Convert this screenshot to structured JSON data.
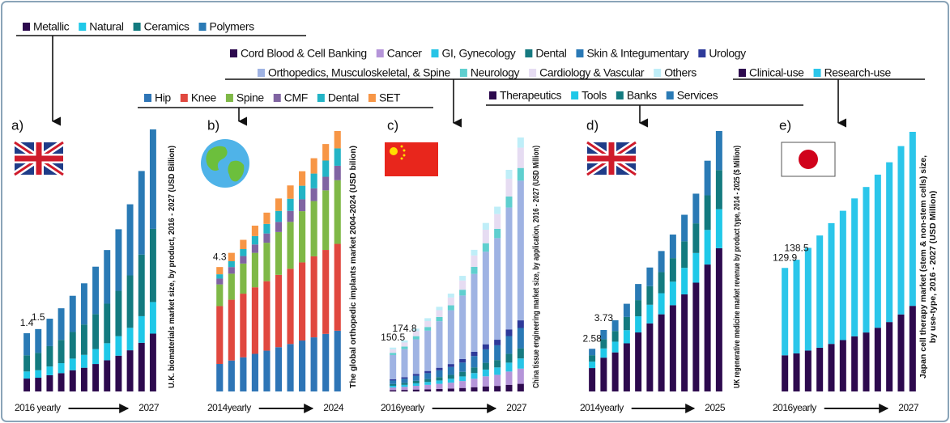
{
  "chart_data": [
    {
      "type": "bar",
      "stacked": true,
      "panel": "a)",
      "y_label": [
        "U.K. biomaterials market size, by product, 2016 - 2027 (USD Billion)"
      ],
      "categories": [
        "2016 yearly",
        null,
        null,
        null,
        null,
        null,
        null,
        null,
        null,
        null,
        null,
        "2027"
      ],
      "annotations": [
        "1.4",
        "1.5"
      ],
      "series": [
        {
          "name": "Metallic",
          "color": "#2d0a4e",
          "values": [
            0.31,
            0.33,
            0.39,
            0.44,
            0.51,
            0.57,
            0.66,
            0.75,
            0.86,
            0.99,
            1.17,
            1.39
          ]
        },
        {
          "name": "Natural",
          "color": "#1fc8e8",
          "values": [
            0.17,
            0.18,
            0.21,
            0.24,
            0.28,
            0.31,
            0.36,
            0.41,
            0.47,
            0.54,
            0.64,
            0.76
          ]
        },
        {
          "name": "Ceramics",
          "color": "#137a7f",
          "values": [
            0.39,
            0.42,
            0.49,
            0.56,
            0.64,
            0.73,
            0.84,
            0.95,
            1.09,
            1.26,
            1.48,
            1.76
          ]
        },
        {
          "name": "Polymers",
          "color": "#2a7ab5",
          "values": [
            0.53,
            0.57,
            0.66,
            0.76,
            0.87,
            0.99,
            1.14,
            1.29,
            1.48,
            1.71,
            2.01,
            2.39
          ]
        }
      ]
    },
    {
      "type": "bar",
      "stacked": true,
      "panel": "b)",
      "y_label": [
        "The global orthopedic implants market 2004-2024 (USD bilion)"
      ],
      "categories": [
        "2014yearly",
        null,
        null,
        null,
        null,
        null,
        null,
        null,
        null,
        null,
        "2024"
      ],
      "annotations": [
        "4.3"
      ],
      "series": [
        {
          "name": "Hip",
          "color": "#2e75b6",
          "values": [
            0.95,
            1.07,
            1.18,
            1.3,
            1.41,
            1.53,
            1.64,
            1.76,
            1.87,
            1.99,
            2.1
          ]
        },
        {
          "name": "Knee",
          "color": "#e0483f",
          "values": [
            2.0,
            2.1,
            2.2,
            2.3,
            2.4,
            2.5,
            2.6,
            2.7,
            2.8,
            2.9,
            3.0
          ]
        },
        {
          "name": "Spine",
          "color": "#7fb847",
          "values": [
            0.75,
            0.9,
            1.04,
            1.19,
            1.33,
            1.48,
            1.62,
            1.77,
            1.91,
            2.06,
            2.2
          ]
        },
        {
          "name": "CMF",
          "color": "#8064a2",
          "values": [
            0.2,
            0.23,
            0.26,
            0.29,
            0.32,
            0.35,
            0.38,
            0.41,
            0.44,
            0.47,
            0.5
          ]
        },
        {
          "name": "Dental",
          "color": "#23b4c6",
          "values": [
            0.15,
            0.2,
            0.24,
            0.29,
            0.33,
            0.38,
            0.42,
            0.47,
            0.51,
            0.56,
            0.6
          ]
        },
        {
          "name": "SET",
          "color": "#f79646",
          "values": [
            0.25,
            0.29,
            0.32,
            0.36,
            0.39,
            0.43,
            0.46,
            0.5,
            0.53,
            0.57,
            0.6
          ]
        }
      ]
    },
    {
      "type": "bar",
      "stacked": true,
      "panel": "c)",
      "y_label": [
        "China tissue engineering market size, by application, 2016 - 2027 (USD Million)"
      ],
      "categories": [
        "2016yearly",
        null,
        null,
        null,
        null,
        null,
        null,
        null,
        null,
        null,
        null,
        "2027"
      ],
      "annotations": [
        "150.5",
        "174.8"
      ],
      "series": [
        {
          "name": "Cord Blood & Cell Banking",
          "color": "#2d0a4e",
          "values": [
            4.5,
            5.2,
            6.5,
            7.5,
            8.7,
            10.1,
            11.9,
            14.6,
            17.3,
            19.0,
            22.8,
            26.1
          ]
        },
        {
          "name": "Cancer",
          "color": "#b595d9",
          "values": [
            9.0,
            10.5,
            12.9,
            15.1,
            17.4,
            20.1,
            23.8,
            29.1,
            34.6,
            38.0,
            45.5,
            52.2
          ]
        },
        {
          "name": "GI, Gynecology",
          "color": "#27c4e6",
          "values": [
            6.0,
            7.0,
            8.6,
            10.0,
            11.6,
            13.4,
            15.8,
            19.4,
            23.1,
            25.3,
            30.4,
            34.8
          ]
        },
        {
          "name": "Dental",
          "color": "#167a80",
          "values": [
            6.0,
            7.0,
            8.6,
            10.0,
            11.6,
            13.4,
            15.8,
            19.4,
            23.1,
            25.3,
            30.4,
            34.8
          ]
        },
        {
          "name": "Skin & Integumentary",
          "color": "#2a79b6",
          "values": [
            12.0,
            14.0,
            17.2,
            20.1,
            23.2,
            26.8,
            31.7,
            38.8,
            46.2,
            50.6,
            60.7,
            69.6
          ]
        },
        {
          "name": "Urology",
          "color": "#2e3a9a",
          "values": [
            4.5,
            5.2,
            6.5,
            7.5,
            8.7,
            10.1,
            11.9,
            14.6,
            17.3,
            19.0,
            22.8,
            26.1
          ]
        },
        {
          "name": "Orthopedics, Musculoskeletal, & Spine",
          "color": "#9fb3e3",
          "values": [
            82.8,
            96.1,
            118.3,
            138.1,
            159.5,
            184.3,
            217.8,
            266.8,
            317.4,
            348.2,
            417.5,
            478.5
          ]
        },
        {
          "name": "Neurology",
          "color": "#5fcfcf",
          "values": [
            7.5,
            8.7,
            10.8,
            12.6,
            14.5,
            16.8,
            19.8,
            24.3,
            28.9,
            31.7,
            38.0,
            43.5
          ]
        },
        {
          "name": "Cardiology & Vascular",
          "color": "#e6dcf2",
          "values": [
            12.0,
            14.0,
            17.2,
            20.1,
            23.2,
            26.8,
            31.7,
            38.8,
            46.2,
            50.6,
            60.7,
            69.6
          ]
        },
        {
          "name": "Others",
          "color": "#bfeef8",
          "values": [
            6.0,
            7.0,
            8.6,
            10.0,
            11.6,
            13.4,
            15.8,
            19.4,
            23.1,
            25.3,
            30.4,
            34.8
          ]
        }
      ]
    },
    {
      "type": "bar",
      "stacked": true,
      "panel": "d)",
      "y_label": [
        "UK regenerative medicine market revenue by product type, 2014 - 2025 ($ Million)"
      ],
      "categories": [
        "2014yearly",
        null,
        null,
        null,
        null,
        null,
        null,
        null,
        null,
        null,
        null,
        "2025"
      ],
      "annotations": [
        "2.58",
        "3.73"
      ],
      "series": [
        {
          "name": "Therapeutics",
          "color": "#2d0a4e",
          "values": [
            1.42,
            2.05,
            2.37,
            2.92,
            3.58,
            4.13,
            4.68,
            5.23,
            5.89,
            6.6,
            7.7,
            8.69
          ]
        },
        {
          "name": "Tools",
          "color": "#1fc8e8",
          "values": [
            0.39,
            0.56,
            0.65,
            0.8,
            0.98,
            1.13,
            1.28,
            1.43,
            1.61,
            1.8,
            2.1,
            2.37
          ]
        },
        {
          "name": "Banks",
          "color": "#137a7f",
          "values": [
            0.39,
            0.56,
            0.65,
            0.8,
            0.98,
            1.13,
            1.28,
            1.43,
            1.61,
            1.8,
            2.1,
            2.37
          ]
        },
        {
          "name": "Services",
          "color": "#2a7ab5",
          "values": [
            0.39,
            0.56,
            0.65,
            0.8,
            0.98,
            1.13,
            1.28,
            1.43,
            1.61,
            1.8,
            2.1,
            2.37
          ]
        }
      ]
    },
    {
      "type": "bar",
      "stacked": true,
      "panel": "e)",
      "y_label": [
        "Japan cell therapy market (stem & non-stem cells) size,",
        "by use-type, 2016 - 2027 (USD Million)"
      ],
      "categories": [
        "2016yearly",
        null,
        null,
        null,
        null,
        null,
        null,
        null,
        null,
        null,
        null,
        "2027"
      ],
      "annotations": [
        "129.9",
        "138.5"
      ],
      "series": [
        {
          "name": "Clinical-use",
          "color": "#2d0a4e",
          "values": [
            38,
            40,
            43,
            46,
            50,
            54,
            58,
            62,
            67,
            73,
            81,
            90
          ]
        },
        {
          "name": "Research-use",
          "color": "#2bc6ea",
          "values": [
            91.9,
            98.5,
            108,
            118,
            127,
            136,
            145,
            153,
            161,
            168,
            177,
            183
          ]
        }
      ]
    }
  ]
}
